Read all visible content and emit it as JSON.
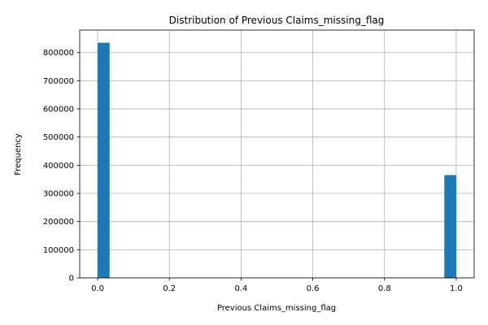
{
  "chart_data": {
    "type": "bar",
    "title": "Distribution of Previous Claims_missing_flag",
    "xlabel": "Previous Claims_missing_flag",
    "ylabel": "Frequency",
    "xlim": [
      -0.05,
      1.05
    ],
    "ylim": [
      0,
      880000
    ],
    "x_ticks": [
      0.0,
      0.2,
      0.4,
      0.6,
      0.8,
      1.0
    ],
    "x_tick_labels": [
      "0.0",
      "0.2",
      "0.4",
      "0.6",
      "0.8",
      "1.0"
    ],
    "y_ticks": [
      0,
      100000,
      200000,
      300000,
      400000,
      500000,
      600000,
      700000,
      800000
    ],
    "y_tick_labels": [
      "0",
      "100000",
      "200000",
      "300000",
      "400000",
      "500000",
      "600000",
      "700000",
      "800000"
    ],
    "bin_width": 0.0333,
    "bars": [
      {
        "x_start": 0.0,
        "x_end": 0.0333,
        "value": 835000
      },
      {
        "x_start": 0.9667,
        "x_end": 1.0,
        "value": 365000
      }
    ],
    "grid": true,
    "bar_color": "#1f77b4"
  }
}
